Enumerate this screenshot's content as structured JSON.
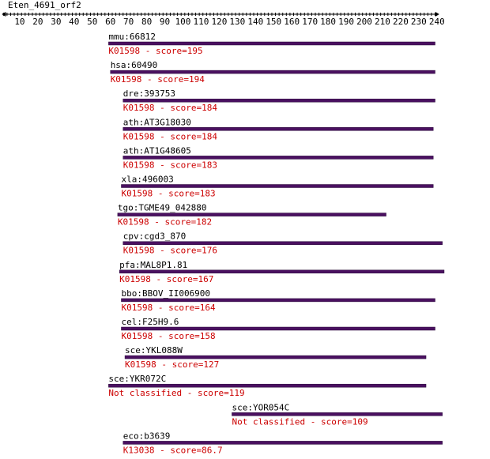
{
  "title": "Eten_4691_orf2",
  "ruler": {
    "min": 1,
    "max": 240,
    "tick_labels": [
      10,
      20,
      30,
      40,
      50,
      60,
      70,
      80,
      90,
      100,
      110,
      120,
      130,
      140,
      150,
      160,
      170,
      180,
      190,
      200,
      210,
      220,
      230,
      240
    ]
  },
  "colors": {
    "bar": "#4a1060",
    "bar_outline": "#2a0a3a",
    "annotation": "#cc0000",
    "text": "#000000",
    "ruler": "#000000"
  },
  "hits": [
    {
      "id": "mmu:66812",
      "annotation": "K01598 - score=195",
      "start": 59,
      "end": 239
    },
    {
      "id": "hsa:60490",
      "annotation": "K01598 - score=194",
      "start": 60,
      "end": 239
    },
    {
      "id": "dre:393753",
      "annotation": "K01598 - score=184",
      "start": 67,
      "end": 239
    },
    {
      "id": "ath:AT3G18030",
      "annotation": "K01598 - score=184",
      "start": 67,
      "end": 238
    },
    {
      "id": "ath:AT1G48605",
      "annotation": "K01598 - score=183",
      "start": 67,
      "end": 238
    },
    {
      "id": "xla:496003",
      "annotation": "K01598 - score=183",
      "start": 66,
      "end": 238
    },
    {
      "id": "tgo:TGME49_042880",
      "annotation": "K01598 - score=182",
      "start": 64,
      "end": 212
    },
    {
      "id": "cpv:cgd3_870",
      "annotation": "K01598 - score=176",
      "start": 67,
      "end": 243
    },
    {
      "id": "pfa:MAL8P1.81",
      "annotation": "K01598 - score=167",
      "start": 65,
      "end": 244
    },
    {
      "id": "bbo:BBOV_II006900",
      "annotation": "K01598 - score=164",
      "start": 66,
      "end": 239
    },
    {
      "id": "cel:F25H9.6",
      "annotation": "K01598 - score=158",
      "start": 66,
      "end": 239
    },
    {
      "id": "sce:YKL088W",
      "annotation": "K01598 - score=127",
      "start": 68,
      "end": 234
    },
    {
      "id": "sce:YKR072C",
      "annotation": "Not classified - score=119",
      "start": 59,
      "end": 234
    },
    {
      "id": "sce:YOR054C",
      "annotation": "Not classified - score=109",
      "start": 127,
      "end": 243
    },
    {
      "id": "eco:b3639",
      "annotation": "K13038 - score=86.7",
      "start": 67,
      "end": 243
    }
  ]
}
